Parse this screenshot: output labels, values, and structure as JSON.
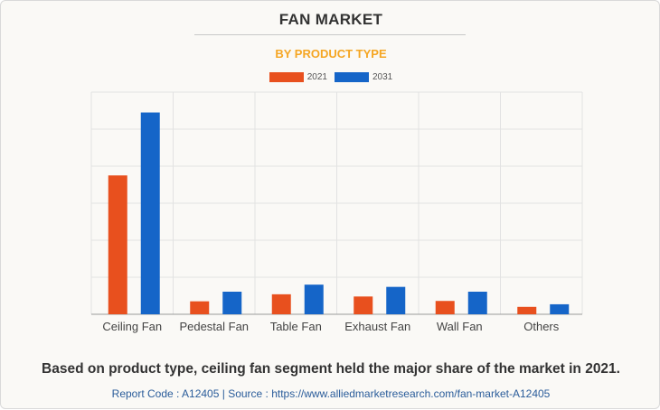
{
  "header": {
    "title": "FAN MARKET",
    "subtitle": "BY PRODUCT TYPE"
  },
  "colors": {
    "series_2021": "#e8501e",
    "series_2031": "#1565c8",
    "subtitle": "#f5a623",
    "grid": "#e2e2e2"
  },
  "chart_data": {
    "type": "bar",
    "categories": [
      "Ceiling Fan",
      "Pedestal Fan",
      "Table Fan",
      "Exhaust Fan",
      "Wall Fan",
      "Others"
    ],
    "series": [
      {
        "name": "2021",
        "values": [
          37.5,
          3.5,
          5.4,
          4.8,
          3.6,
          2.0
        ]
      },
      {
        "name": "2031",
        "values": [
          54.5,
          6.1,
          8.0,
          7.4,
          6.1,
          2.7
        ]
      }
    ],
    "ylim": [
      0,
      60
    ],
    "grid": true,
    "legend": "top-center"
  },
  "footer": {
    "caption": "Based on product type, ceiling fan segment held the major share of the market in 2021.",
    "source": "Report Code : A12405  |  Source : https://www.alliedmarketresearch.com/fan-market-A12405"
  }
}
